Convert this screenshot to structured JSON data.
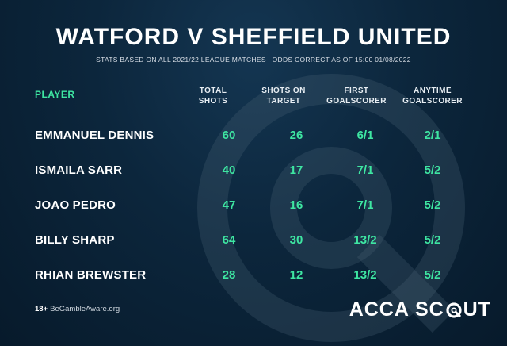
{
  "title": "WATFORD V SHEFFIELD UNITED",
  "subtitle": "STATS BASED ON ALL 2021/22 LEAGUE MATCHES | ODDS CORRECT AS OF 15:00 01/08/2022",
  "columns": {
    "player": "PLAYER",
    "total_shots": "TOTAL SHOTS",
    "shots_on_target": "SHOTS ON TARGET",
    "first_goalscorer": "FIRST GOALSCORER",
    "anytime_goalscorer": "ANYTIME GOALSCORER"
  },
  "rows": [
    {
      "player": "EMMANUEL DENNIS",
      "total_shots": "60",
      "shots_on_target": "26",
      "first": "6/1",
      "anytime": "2/1"
    },
    {
      "player": "ISMAILA SARR",
      "total_shots": "40",
      "shots_on_target": "17",
      "first": "7/1",
      "anytime": "5/2"
    },
    {
      "player": "JOAO PEDRO",
      "total_shots": "47",
      "shots_on_target": "16",
      "first": "7/1",
      "anytime": "5/2"
    },
    {
      "player": "BILLY SHARP",
      "total_shots": "64",
      "shots_on_target": "30",
      "first": "13/2",
      "anytime": "5/2"
    },
    {
      "player": "RHIAN BREWSTER",
      "total_shots": "28",
      "shots_on_target": "12",
      "first": "13/2",
      "anytime": "5/2"
    }
  ],
  "footer": {
    "age": "18+",
    "site": "BeGambleAware.org"
  },
  "brand": {
    "part1": "ACCA SC",
    "part2": "UT"
  },
  "colors": {
    "accent": "#3ee6a2",
    "background": "#0c263c"
  },
  "icons": {
    "watermark": "target-watermark-icon",
    "brand": "target-o-icon"
  }
}
